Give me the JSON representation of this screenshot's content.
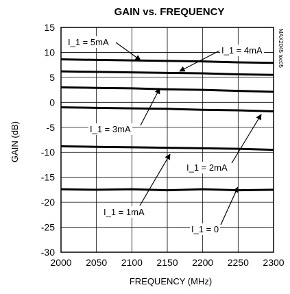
{
  "chart_data": {
    "type": "line",
    "title": "GAIN vs. FREQUENCY",
    "xlabel": "FREQUENCY (MHz)",
    "ylabel": "GAIN (dB)",
    "xlim": [
      2000,
      2300
    ],
    "ylim": [
      -30,
      15
    ],
    "xticks": [
      2000,
      2050,
      2100,
      2150,
      2200,
      2250,
      2300
    ],
    "yticks": [
      15,
      10,
      5,
      0,
      -5,
      -10,
      -15,
      -20,
      -25,
      -30
    ],
    "grid": true,
    "x": [
      2000,
      2050,
      2100,
      2150,
      2200,
      2250,
      2300
    ],
    "series": [
      {
        "name": "I_1 = 5mA",
        "values": [
          8.6,
          8.5,
          8.4,
          8.3,
          8.2,
          8.0,
          7.9
        ]
      },
      {
        "name": "I_1 = 4mA",
        "values": [
          6.2,
          6.1,
          6.0,
          5.9,
          5.8,
          5.6,
          5.5
        ]
      },
      {
        "name": "I_1 = 3mA",
        "values": [
          3.0,
          2.9,
          2.8,
          2.6,
          2.5,
          2.3,
          2.1
        ]
      },
      {
        "name": "I_1 = 2mA",
        "values": [
          -1.0,
          -1.1,
          -1.2,
          -1.3,
          -1.5,
          -1.6,
          -1.8
        ]
      },
      {
        "name": "I_1 = 1mA",
        "values": [
          -8.8,
          -8.9,
          -9.0,
          -9.1,
          -9.2,
          -9.3,
          -9.5
        ]
      },
      {
        "name": "I_1 = 0",
        "values": [
          -17.4,
          -17.5,
          -17.4,
          -17.6,
          -17.4,
          -17.6,
          -17.5
        ]
      }
    ],
    "annotations": [
      {
        "text": "I_1 = 5mA",
        "series": "I_1 = 5mA"
      },
      {
        "text": "I_1 = 4mA",
        "series": "I_1 = 4mA"
      },
      {
        "text": "I_1 = 3mA",
        "series": "I_1 = 3mA"
      },
      {
        "text": "I_1 = 2mA",
        "series": "I_1 = 2mA"
      },
      {
        "text": "I_1 = 1mA",
        "series": "I_1 = 1mA"
      },
      {
        "text": "I_1 = 0",
        "series": "I_1 = 0"
      }
    ],
    "watermark": "MAX2045 toc05"
  }
}
